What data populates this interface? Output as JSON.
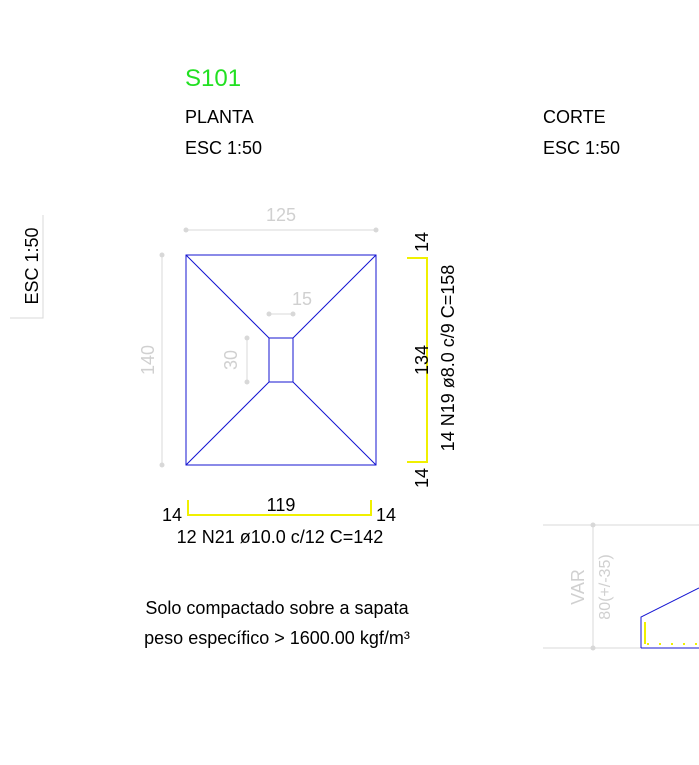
{
  "header": {
    "code": "S101",
    "plan_title": "PLANTA",
    "plan_scale": "ESC 1:50",
    "section_title": "CORTE",
    "section_scale": "ESC 1:50",
    "side_scale": "ESC 1:50"
  },
  "dimensions": {
    "width": "125",
    "length": "140",
    "column_width": "15",
    "column_length": "30"
  },
  "rebar_y": {
    "hook_top": "14",
    "length": "134",
    "hook_bottom": "14",
    "label": "14 N19 ø8.0 c/9  C=158"
  },
  "rebar_x": {
    "hook_left": "14",
    "length": "119",
    "hook_right": "14",
    "label": "12 N21 ø10.0 c/12  C=142"
  },
  "note": {
    "line1": "Solo compactado sobre a sapata",
    "line2": "peso específico > 1600.00 kgf/m³"
  },
  "section": {
    "height_label": "VAR",
    "height_value": "80(+/-35)"
  }
}
